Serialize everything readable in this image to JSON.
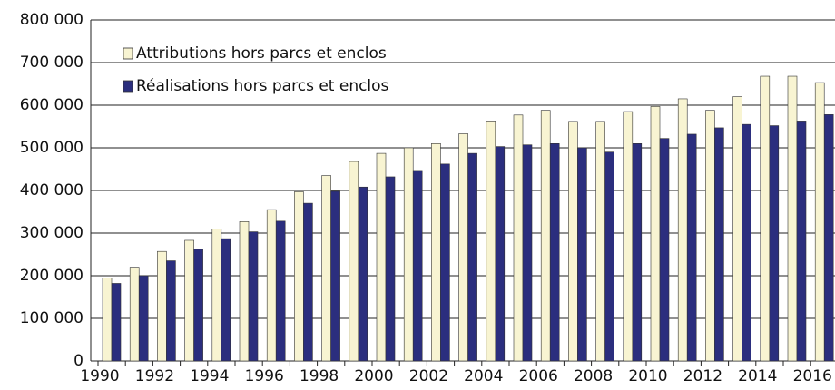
{
  "chart_data": {
    "type": "bar",
    "categories": [
      "1990",
      null,
      "1992",
      null,
      "1994",
      null,
      "1996",
      null,
      "1998",
      null,
      "2000",
      null,
      "2002",
      null,
      "2004",
      null,
      "2006",
      null,
      "2008",
      null,
      "2010",
      null,
      "2012",
      null,
      "2014",
      null,
      "2016"
    ],
    "series": [
      {
        "name": "Attributions hors parcs et enclos",
        "color": "#f8f4d2",
        "values": [
          195000,
          220000,
          257000,
          283000,
          310000,
          327000,
          355000,
          397000,
          435000,
          468000,
          487000,
          500000,
          510000,
          533000,
          563000,
          577000,
          588000,
          562000,
          562000,
          585000,
          597000,
          615000,
          588000,
          620000,
          668000,
          668000,
          653000
        ]
      },
      {
        "name": "Réalisations hors parcs et enclos",
        "color": "#2b2e7e",
        "values": [
          182000,
          200000,
          235000,
          262000,
          287000,
          303000,
          328000,
          370000,
          398000,
          408000,
          432000,
          447000,
          462000,
          487000,
          503000,
          507000,
          510000,
          500000,
          490000,
          510000,
          522000,
          532000,
          547000,
          555000,
          552000,
          563000,
          578000
        ]
      }
    ],
    "ylim": [
      0,
      800000
    ],
    "yticks": [
      0,
      {
        "value": 100000,
        "label": "100 000"
      },
      {
        "value": 200000,
        "label": "200 000"
      },
      {
        "value": 300000,
        "label": "300 000"
      },
      {
        "value": 400000,
        "label": "400 000"
      },
      {
        "value": 500000,
        "label": "500 000"
      },
      {
        "value": 600000,
        "label": "600 000"
      },
      {
        "value": 700000,
        "label": "700 000"
      },
      {
        "value": 800000,
        "label": "800 000"
      }
    ],
    "grid": true,
    "legend": "upper left"
  }
}
